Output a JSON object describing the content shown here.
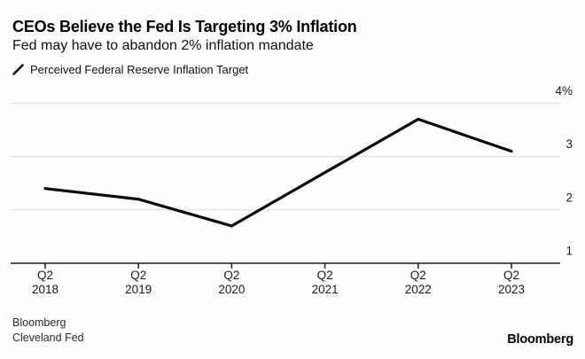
{
  "header": {
    "title": "CEOs Believe the Fed Is Targeting 3% Inflation",
    "subtitle": "Fed may have to abandon 2% inflation mandate"
  },
  "legend": {
    "marker": "slash-line-icon",
    "label": "Perceived Federal Reserve Inflation Target"
  },
  "chart_data": {
    "type": "line",
    "title": "CEOs Believe the Fed Is Targeting 3% Inflation",
    "subtitle": "Fed may have to abandon 2% inflation mandate",
    "categories": [
      {
        "quarter": "Q2",
        "year": "2018"
      },
      {
        "quarter": "Q2",
        "year": "2019"
      },
      {
        "quarter": "Q2",
        "year": "2020"
      },
      {
        "quarter": "Q2",
        "year": "2021"
      },
      {
        "quarter": "Q2",
        "year": "2022"
      },
      {
        "quarter": "Q2",
        "year": "2023"
      }
    ],
    "series": [
      {
        "name": "Perceived Federal Reserve Inflation Target",
        "values": [
          2.4,
          2.2,
          1.7,
          2.7,
          3.7,
          3.1
        ]
      }
    ],
    "ylim": [
      1,
      4
    ],
    "yticks": [
      {
        "value": 4,
        "label": "4%"
      },
      {
        "value": 3,
        "label": "3"
      },
      {
        "value": 2,
        "label": "2"
      },
      {
        "value": 1,
        "label": "1"
      }
    ],
    "grid": "horizontal",
    "legend_position": "top-left",
    "y_axis_side": "right",
    "colors": {
      "line": "#0a0a0a",
      "grid": "#d9d9d9",
      "axis": "#1a1a1a",
      "text": "#1a1a1a",
      "background": "#fdfdfb"
    }
  },
  "footer": {
    "source_line1": "Bloomberg",
    "source_line2": "Cleveland Fed",
    "brand": "Bloomberg"
  }
}
